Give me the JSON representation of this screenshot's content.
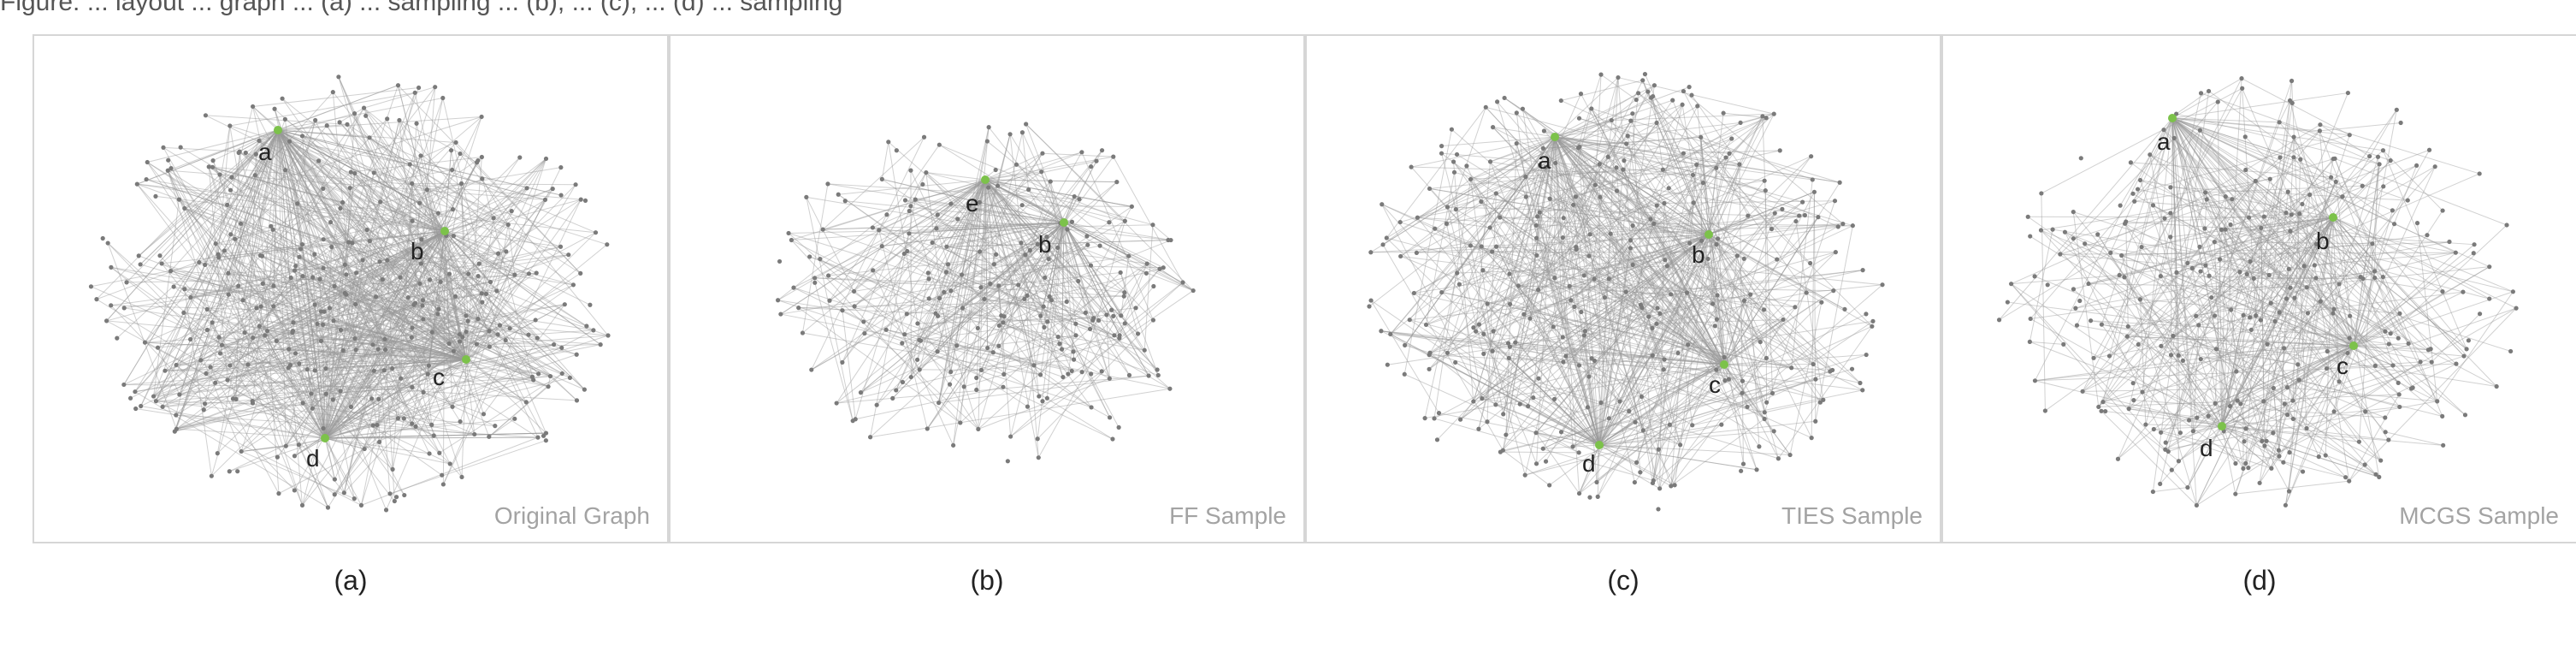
{
  "figure": {
    "top_caption": "Figure: ... layout ... graph ... (a) ... sampling ... (b), ... (c), ... (d) ... sampling"
  },
  "panels": [
    {
      "label": "Original Graph",
      "caption": "(a)",
      "highlighted_nodes": [
        "a",
        "b",
        "c",
        "d"
      ]
    },
    {
      "label": "FF Sample",
      "caption": "(b)",
      "highlighted_nodes": [
        "e",
        "b"
      ]
    },
    {
      "label": "TIES Sample",
      "caption": "(c)",
      "highlighted_nodes": [
        "a",
        "b",
        "c",
        "d"
      ]
    },
    {
      "label": "MCGS Sample",
      "caption": "(d)",
      "highlighted_nodes": [
        "a",
        "b",
        "c",
        "d"
      ]
    }
  ],
  "colors": {
    "edge": "#9a9a9a",
    "node": "#7a7a7a",
    "highlight_node": "#7cc24a",
    "label": "#a3a3a3",
    "frame": "#d6d6d6"
  }
}
